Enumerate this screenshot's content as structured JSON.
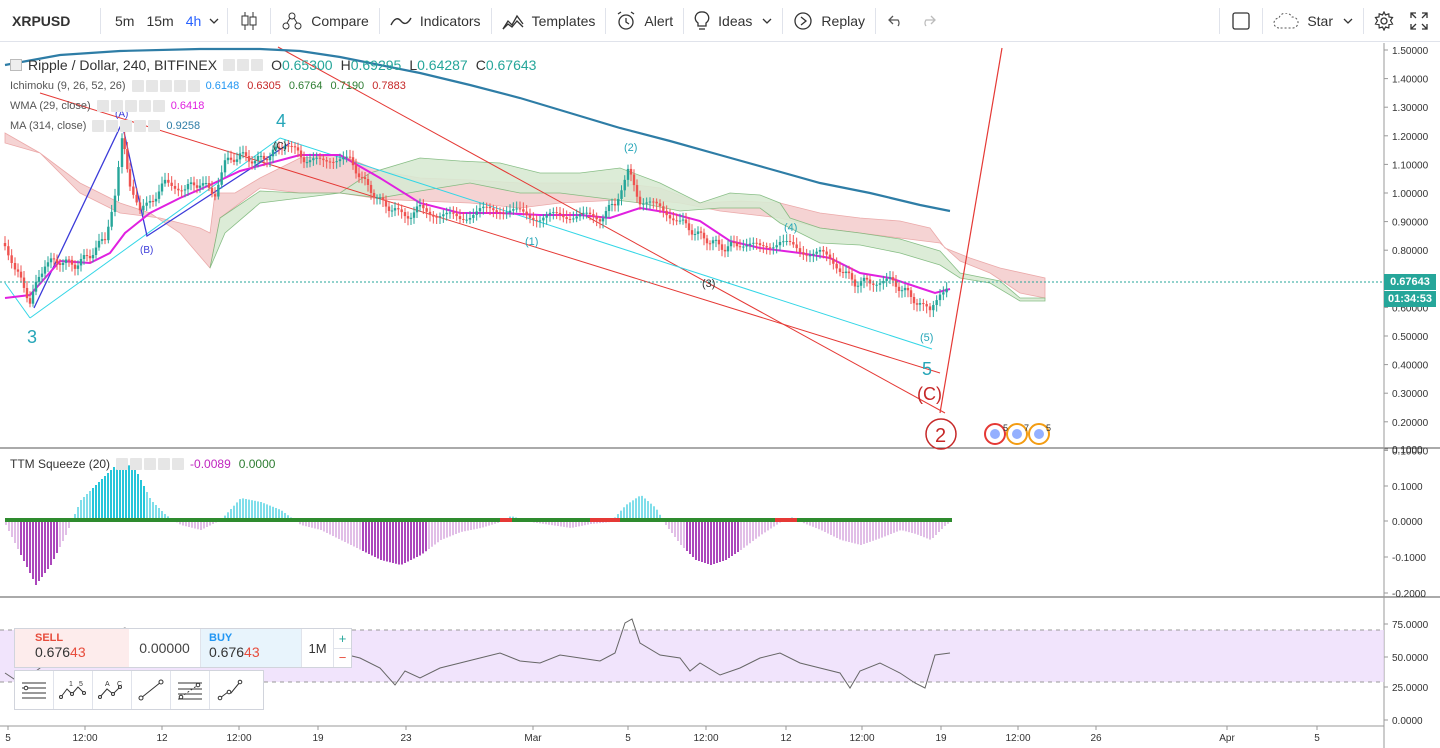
{
  "toolbar": {
    "symbol": "XRPUSD",
    "intervals": [
      "5m",
      "15m",
      "4h"
    ],
    "compare": "Compare",
    "indicators": "Indicators",
    "templates": "Templates",
    "alert": "Alert",
    "ideas": "Ideas",
    "replay": "Replay",
    "star": "Star"
  },
  "legend": {
    "main": {
      "title": "Ripple / Dollar, 240, BITFINEX",
      "o_label": "O",
      "o": "0.65300",
      "h_label": "H",
      "h": "0.69295",
      "l_label": "L",
      "l": "0.64287",
      "c_label": "C",
      "c": "0.67643"
    },
    "ichimoku": {
      "name": "Ichimoku (9, 26, 52, 26)",
      "v1": "0.6148",
      "v2": "0.6305",
      "v3": "0.6764",
      "v4": "0.7190",
      "v5": "0.7883"
    },
    "wma": {
      "name": "WMA (29, close)",
      "value": "0.6418"
    },
    "ma": {
      "name": "MA (314, close)",
      "value": "0.9258"
    },
    "ttm": {
      "name": "TTM Squeeze (20)",
      "v1": "-0.0089",
      "v2": "0.0000"
    }
  },
  "price_axis": [
    "1.50000",
    "1.40000",
    "1.30000",
    "1.20000",
    "1.10000",
    "1.00000",
    "0.90000",
    "0.80000",
    "0.70000",
    "0.60000",
    "0.50000",
    "0.40000",
    "0.30000",
    "0.20000",
    "0.10000"
  ],
  "ttm_axis": [
    "0.1000",
    "0.1000",
    "0.0000",
    "-0.1000",
    "-0.2000"
  ],
  "rsi_axis": [
    "75.0000",
    "50.0000",
    "25.0000",
    "0.0000"
  ],
  "time_axis": [
    "5",
    "12:00",
    "12",
    "12:00",
    "19",
    "23",
    "Mar",
    "5",
    "12:00",
    "12",
    "12:00",
    "19",
    "12:00",
    "26",
    "Apr",
    "5"
  ],
  "last_price": "0.67643",
  "countdown": "01:34:53",
  "waves": {
    "w3": "3",
    "w4": "4",
    "w5": "5",
    "w2": "2",
    "A": "(A)",
    "B": "(B)",
    "C": "(C)",
    "C_big": "(C)",
    "s1": "(1)",
    "s2": "(2)",
    "s3": "(3)",
    "s4": "(4)",
    "s5": "(5)"
  },
  "events": [
    "5",
    "7",
    "5"
  ],
  "order": {
    "sell_label": "SELL",
    "sell_price_main": "0.676",
    "sell_price_tail": "43",
    "spread": "0.00000",
    "buy_label": "BUY",
    "buy_price_main": "0.676",
    "buy_price_tail": "43",
    "size": "1M",
    "plus": "+",
    "minus": "−"
  },
  "colors": {
    "ma314": "#2e7da6",
    "wma": "#e020e0",
    "ichimoku_bear": "#f4cccc",
    "ichimoku_bull": "#d9ead3",
    "wave_teal": "#26a6b8",
    "wave_red": "#c62828",
    "trend_red": "#e53935",
    "trend_cyan": "#33d6e6"
  }
}
